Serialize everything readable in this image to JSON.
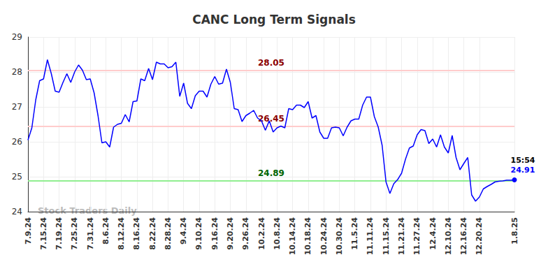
{
  "chart_data": {
    "type": "line",
    "title": "CANC Long Term Signals",
    "categories": [
      "7.9.24",
      null,
      null,
      null,
      "7.15.24",
      null,
      null,
      null,
      "7.19.24",
      null,
      null,
      null,
      "7.25.24",
      null,
      null,
      null,
      "7.31.24",
      null,
      null,
      null,
      "8.6.24",
      null,
      null,
      null,
      "8.12.24",
      null,
      null,
      null,
      "8.16.24",
      null,
      null,
      null,
      "8.22.24",
      null,
      null,
      null,
      "8.28.24",
      null,
      null,
      null,
      "9.4.24",
      null,
      null,
      null,
      "9.10.24",
      null,
      null,
      null,
      "9.16.24",
      null,
      null,
      null,
      "9.20.24",
      null,
      null,
      null,
      "9.26.24",
      null,
      null,
      null,
      "10.2.24",
      null,
      null,
      null,
      "10.8.24",
      null,
      null,
      null,
      "10.14.24",
      null,
      null,
      null,
      "10.18.24",
      null,
      null,
      null,
      "10.24.24",
      null,
      null,
      null,
      "10.30.24",
      null,
      null,
      null,
      "11.5.24",
      null,
      null,
      null,
      "11.11.24",
      null,
      null,
      null,
      "11.15.24",
      null,
      null,
      null,
      "11.21.24",
      null,
      null,
      null,
      "11.27.24",
      null,
      null,
      null,
      "12.4.24",
      null,
      null,
      null,
      "12.10.24",
      null,
      null,
      null,
      "12.16.24",
      null,
      null,
      null,
      "12.20.24",
      null,
      null,
      null,
      null,
      null,
      null,
      null,
      null,
      "1.8.25"
    ],
    "values": [
      26.05,
      26.4,
      27.2,
      27.75,
      27.8,
      28.35,
      27.95,
      27.45,
      27.42,
      27.7,
      27.95,
      27.7,
      28.0,
      28.2,
      28.05,
      27.78,
      27.8,
      27.4,
      26.75,
      25.97,
      26.0,
      25.85,
      26.42,
      26.5,
      26.53,
      26.78,
      26.57,
      27.15,
      27.17,
      27.8,
      27.75,
      28.1,
      27.78,
      28.28,
      28.23,
      28.23,
      28.12,
      28.15,
      28.28,
      27.3,
      27.68,
      27.1,
      26.95,
      27.32,
      27.45,
      27.45,
      27.28,
      27.65,
      27.87,
      27.65,
      27.68,
      28.08,
      27.7,
      26.95,
      26.92,
      26.58,
      26.75,
      26.82,
      26.9,
      26.68,
      26.6,
      26.33,
      26.6,
      26.28,
      26.4,
      26.45,
      26.4,
      26.95,
      26.92,
      27.05,
      27.05,
      26.98,
      27.15,
      26.68,
      26.75,
      26.28,
      26.1,
      26.1,
      26.4,
      26.42,
      26.4,
      26.17,
      26.42,
      26.6,
      26.65,
      26.65,
      27.05,
      27.28,
      27.28,
      26.72,
      26.42,
      25.9,
      24.85,
      24.52,
      24.8,
      24.92,
      25.1,
      25.5,
      25.82,
      25.88,
      26.2,
      26.35,
      26.32,
      25.95,
      26.08,
      25.85,
      26.2,
      25.85,
      25.68,
      26.18,
      25.55,
      25.2,
      25.38,
      25.55,
      24.48,
      24.3,
      24.42,
      24.65,
      24.72,
      24.78,
      24.85,
      24.87,
      24.88,
      24.9,
      24.9,
      24.91
    ],
    "color": "#0000ff",
    "ylim": [
      24,
      29
    ],
    "yticks": [
      24,
      25,
      26,
      27,
      28,
      29
    ],
    "grid": true,
    "levels": [
      {
        "value": 28.05,
        "color": "#ffcccc",
        "label_color": "#8b0000"
      },
      {
        "value": 26.45,
        "color": "#ffcccc",
        "label_color": "#8b0000"
      },
      {
        "value": 24.89,
        "color": "#90ee90",
        "label_color": "#006400"
      }
    ],
    "last_point": {
      "time": "15:54",
      "value": 24.91
    },
    "watermark": "Stock Traders Daily"
  }
}
